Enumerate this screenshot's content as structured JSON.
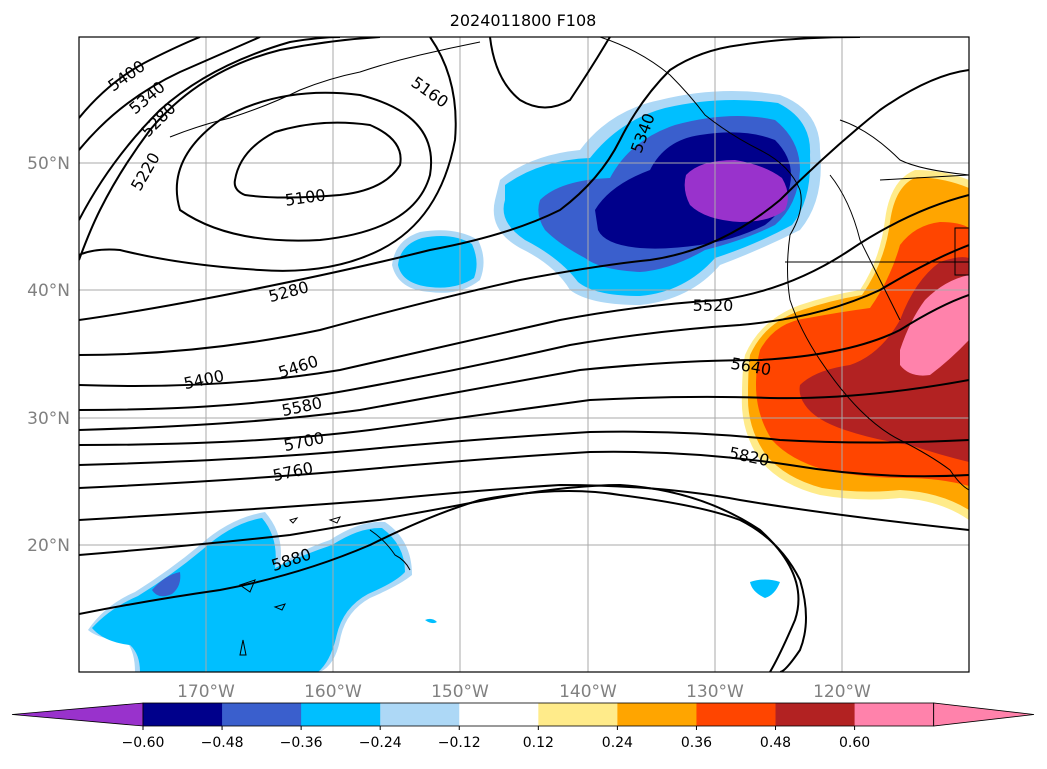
{
  "title": "2024011800 F108",
  "map": {
    "lat_ticks": [
      "20°N",
      "30°N",
      "40°N",
      "50°N"
    ],
    "lon_ticks": [
      "170°W",
      "160°W",
      "150°W",
      "140°W",
      "130°W",
      "120°W"
    ],
    "contour_labels": [
      "5400",
      "5340",
      "5280",
      "5220",
      "5160",
      "5100",
      "5280",
      "5340",
      "5520",
      "5400",
      "5460",
      "5580",
      "5700",
      "5760",
      "5640",
      "5820",
      "5880"
    ]
  },
  "colorbar": {
    "ticks": [
      "−0.60",
      "−0.48",
      "−0.36",
      "−0.24",
      "−0.12",
      "0.12",
      "0.24",
      "0.36",
      "0.48",
      "0.60"
    ],
    "colors": [
      "#9932cc",
      "#00008b",
      "#3a5fcd",
      "#00bfff",
      "#add8f6",
      "#ffffff",
      "#ffeb8a",
      "#ffa500",
      "#ff4500",
      "#b22222",
      "#ff82ab",
      "#ff82ab"
    ]
  }
}
